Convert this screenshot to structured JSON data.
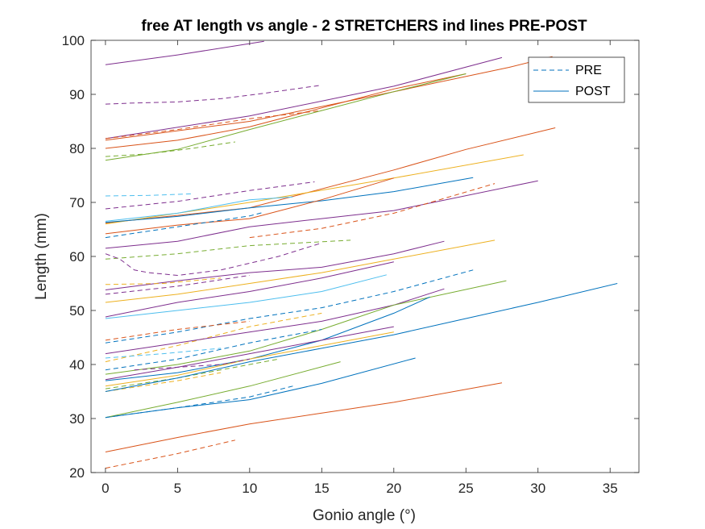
{
  "chart_data": {
    "type": "line",
    "title": "free AT length vs angle - 2 STRETCHERS ind lines PRE-POST",
    "xlabel": "Gonio angle (°)",
    "ylabel": "Length (mm)",
    "xlim": [
      -1,
      37
    ],
    "ylim": [
      20,
      100
    ],
    "xticks": [
      0,
      5,
      10,
      15,
      20,
      25,
      30,
      35
    ],
    "yticks": [
      20,
      30,
      40,
      50,
      60,
      70,
      80,
      90,
      100
    ],
    "grid": false,
    "legend": {
      "position": "top-right",
      "entries": [
        {
          "label": "PRE",
          "style": "dashed",
          "color": "#0072BD"
        },
        {
          "label": "POST",
          "style": "solid",
          "color": "#0072BD"
        }
      ]
    },
    "series": [
      {
        "style": "solid",
        "color": "#7E2F8E",
        "points": [
          [
            0,
            95.5
          ],
          [
            5,
            97.3
          ],
          [
            11,
            99.8
          ]
        ]
      },
      {
        "style": "dashed",
        "color": "#7E2F8E",
        "points": [
          [
            0,
            88.2
          ],
          [
            2,
            88.4
          ],
          [
            5,
            88.6
          ],
          [
            8,
            89.2
          ],
          [
            11,
            90.2
          ],
          [
            15,
            91.7
          ]
        ]
      },
      {
        "style": "solid",
        "color": "#7E2F8E",
        "points": [
          [
            0,
            81.8
          ],
          [
            10,
            86.0
          ],
          [
            20,
            91.5
          ],
          [
            27.5,
            96.8
          ]
        ]
      },
      {
        "style": "solid",
        "color": "#D95319",
        "points": [
          [
            0,
            81.5
          ],
          [
            10,
            85.0
          ],
          [
            20,
            90.5
          ],
          [
            28,
            95.0
          ],
          [
            31,
            97.0
          ]
        ]
      },
      {
        "style": "dashed",
        "color": "#D95319",
        "points": [
          [
            0,
            81.8
          ],
          [
            5,
            83.5
          ],
          [
            10,
            85.5
          ],
          [
            15,
            87.0
          ]
        ]
      },
      {
        "style": "solid",
        "color": "#D95319",
        "points": [
          [
            0,
            80.0
          ],
          [
            5,
            81.5
          ],
          [
            10,
            84.0
          ],
          [
            15,
            87.5
          ],
          [
            20,
            91.0
          ],
          [
            25,
            93.8
          ]
        ]
      },
      {
        "style": "dashed",
        "color": "#77AC30",
        "points": [
          [
            0,
            78.5
          ],
          [
            3,
            79.0
          ],
          [
            6,
            80.0
          ],
          [
            9,
            81.2
          ]
        ]
      },
      {
        "style": "solid",
        "color": "#77AC30",
        "points": [
          [
            0,
            77.8
          ],
          [
            5,
            79.8
          ],
          [
            10,
            83.5
          ],
          [
            15,
            87.0
          ],
          [
            20,
            90.5
          ],
          [
            25,
            93.8
          ]
        ]
      },
      {
        "style": "solid",
        "color": "#D95319",
        "points": [
          [
            0,
            66.2
          ],
          [
            10,
            69.0
          ],
          [
            20,
            76.0
          ],
          [
            25,
            79.8
          ],
          [
            31.2,
            83.8
          ]
        ]
      },
      {
        "style": "solid",
        "color": "#EDB120",
        "points": [
          [
            0,
            66.0
          ],
          [
            10,
            70.0
          ],
          [
            20,
            74.5
          ],
          [
            29,
            78.8
          ]
        ]
      },
      {
        "style": "dashed",
        "color": "#4DBEEE",
        "points": [
          [
            0,
            71.2
          ],
          [
            3,
            71.3
          ],
          [
            6,
            71.6
          ]
        ]
      },
      {
        "style": "solid",
        "color": "#4DBEEE",
        "points": [
          [
            0,
            66.5
          ],
          [
            5,
            68.0
          ],
          [
            10,
            70.5
          ],
          [
            13,
            71.0
          ]
        ]
      },
      {
        "style": "dashed",
        "color": "#7E2F8E",
        "points": [
          [
            0,
            68.8
          ],
          [
            5,
            70.2
          ],
          [
            10,
            72.2
          ],
          [
            14.5,
            73.8
          ]
        ]
      },
      {
        "style": "solid",
        "color": "#0072BD",
        "points": [
          [
            0,
            66.3
          ],
          [
            5,
            67.4
          ],
          [
            10,
            69.0
          ],
          [
            15,
            70.3
          ],
          [
            20,
            72.0
          ],
          [
            25.5,
            74.6
          ]
        ]
      },
      {
        "style": "solid",
        "color": "#7E2F8E",
        "points": [
          [
            0,
            61.5
          ],
          [
            5,
            62.8
          ],
          [
            10,
            65.5
          ],
          [
            15,
            67.0
          ],
          [
            20,
            68.5
          ],
          [
            30,
            74.0
          ]
        ]
      },
      {
        "style": "solid",
        "color": "#D95319",
        "points": [
          [
            0,
            64.2
          ],
          [
            5,
            65.8
          ],
          [
            10,
            67.0
          ],
          [
            15,
            70.5
          ],
          [
            20,
            74.5
          ]
        ]
      },
      {
        "style": "dashed",
        "color": "#D95319",
        "points": [
          [
            10,
            63.5
          ],
          [
            15,
            65.2
          ],
          [
            20,
            68.0
          ],
          [
            27,
            73.5
          ]
        ]
      },
      {
        "style": "dashed",
        "color": "#0072BD",
        "points": [
          [
            0,
            63.5
          ],
          [
            5,
            65.5
          ],
          [
            10,
            67.5
          ],
          [
            11,
            68.2
          ]
        ]
      },
      {
        "style": "dashed",
        "color": "#77AC30",
        "points": [
          [
            0,
            59.5
          ],
          [
            5,
            60.5
          ],
          [
            10,
            62.0
          ],
          [
            17,
            63.0
          ]
        ]
      },
      {
        "style": "dashed",
        "color": "#7E2F8E",
        "points": [
          [
            0,
            60.5
          ],
          [
            1,
            59.5
          ],
          [
            2,
            57.5
          ],
          [
            3,
            57.0
          ],
          [
            5,
            56.5
          ],
          [
            8,
            57.5
          ],
          [
            12,
            60.0
          ],
          [
            15,
            62.5
          ]
        ]
      },
      {
        "style": "solid",
        "color": "#7E2F8E",
        "points": [
          [
            0,
            53.8
          ],
          [
            5,
            55.5
          ],
          [
            10,
            57.0
          ],
          [
            15,
            58.0
          ],
          [
            20,
            60.5
          ],
          [
            23.5,
            62.8
          ]
        ]
      },
      {
        "style": "solid",
        "color": "#EDB120",
        "points": [
          [
            0,
            51.5
          ],
          [
            5,
            53.0
          ],
          [
            10,
            55.0
          ],
          [
            15,
            57.0
          ],
          [
            20,
            59.5
          ],
          [
            27,
            63.0
          ]
        ]
      },
      {
        "style": "dashed",
        "color": "#EDB120",
        "points": [
          [
            0,
            54.8
          ],
          [
            4,
            55.0
          ],
          [
            8,
            56.0
          ]
        ]
      },
      {
        "style": "dashed",
        "color": "#7E2F8E",
        "points": [
          [
            0,
            53.0
          ],
          [
            5,
            54.5
          ],
          [
            10,
            56.5
          ]
        ]
      },
      {
        "style": "solid",
        "color": "#4DBEEE",
        "points": [
          [
            0,
            48.5
          ],
          [
            5,
            50.0
          ],
          [
            10,
            51.5
          ],
          [
            15,
            53.5
          ],
          [
            19.5,
            56.6
          ]
        ]
      },
      {
        "style": "dashed",
        "color": "#0072BD",
        "points": [
          [
            0,
            44.0
          ],
          [
            5,
            46.0
          ],
          [
            10,
            48.5
          ],
          [
            15,
            50.5
          ],
          [
            20,
            53.5
          ],
          [
            25.5,
            57.5
          ]
        ]
      },
      {
        "style": "solid",
        "color": "#7E2F8E",
        "points": [
          [
            0,
            48.8
          ],
          [
            5,
            51.5
          ],
          [
            10,
            53.5
          ],
          [
            15,
            56.0
          ],
          [
            20,
            59.0
          ]
        ]
      },
      {
        "style": "dashed",
        "color": "#EDB120",
        "points": [
          [
            0,
            40.5
          ],
          [
            5,
            43.5
          ],
          [
            10,
            47.0
          ],
          [
            15,
            49.5
          ]
        ]
      },
      {
        "style": "solid",
        "color": "#7E2F8E",
        "points": [
          [
            0,
            42.0
          ],
          [
            5,
            44.0
          ],
          [
            10,
            46.0
          ],
          [
            15,
            48.0
          ],
          [
            20,
            51.0
          ],
          [
            23.5,
            54.0
          ]
        ]
      },
      {
        "style": "solid",
        "color": "#77AC30",
        "points": [
          [
            0,
            38.2
          ],
          [
            5,
            40.0
          ],
          [
            10,
            42.5
          ],
          [
            15,
            46.5
          ],
          [
            20,
            51.0
          ],
          [
            27.8,
            55.5
          ]
        ]
      },
      {
        "style": "solid",
        "color": "#0072BD",
        "points": [
          [
            0,
            37.0
          ],
          [
            5,
            38.5
          ],
          [
            10,
            41.0
          ],
          [
            15,
            44.5
          ],
          [
            20,
            49.5
          ],
          [
            22.5,
            52.5
          ]
        ]
      },
      {
        "style": "solid",
        "color": "#7E2F8E",
        "points": [
          [
            0,
            37.2
          ],
          [
            5,
            39.5
          ],
          [
            10,
            42.0
          ],
          [
            15,
            44.5
          ],
          [
            20,
            47.0
          ]
        ]
      },
      {
        "style": "solid",
        "color": "#EDB120",
        "points": [
          [
            0,
            36.0
          ],
          [
            5,
            38.0
          ],
          [
            10,
            41.0
          ],
          [
            15,
            43.5
          ],
          [
            20,
            46.0
          ]
        ]
      },
      {
        "style": "dashed",
        "color": "#4DBEEE",
        "points": [
          [
            0,
            41.2
          ],
          [
            4,
            42.0
          ],
          [
            8,
            43.0
          ]
        ]
      },
      {
        "style": "dashed",
        "color": "#D95319",
        "points": [
          [
            0,
            44.5
          ],
          [
            5,
            46.5
          ],
          [
            10,
            48.0
          ]
        ]
      },
      {
        "style": "dashed",
        "color": "#0072BD",
        "points": [
          [
            0,
            39.0
          ],
          [
            5,
            41.0
          ],
          [
            10,
            44.0
          ],
          [
            15,
            46.5
          ]
        ]
      },
      {
        "style": "dashed",
        "color": "#77AC30",
        "points": [
          [
            0,
            35.5
          ],
          [
            5,
            37.5
          ],
          [
            10,
            40.0
          ],
          [
            12,
            41.0
          ]
        ]
      },
      {
        "style": "dashed",
        "color": "#EDB120",
        "points": [
          [
            0,
            35.0
          ],
          [
            5,
            37.0
          ],
          [
            8,
            38.5
          ]
        ]
      },
      {
        "style": "dashed",
        "color": "#7E2F8E",
        "points": [
          [
            2,
            39.0
          ],
          [
            5,
            39.5
          ],
          [
            8,
            40.0
          ],
          [
            10,
            41.0
          ]
        ]
      },
      {
        "style": "solid",
        "color": "#0072BD",
        "points": [
          [
            0,
            35.0
          ],
          [
            5,
            37.5
          ],
          [
            10,
            40.5
          ],
          [
            15,
            43.0
          ],
          [
            20,
            45.5
          ],
          [
            25,
            48.5
          ],
          [
            30,
            51.5
          ],
          [
            35.5,
            55.0
          ]
        ]
      },
      {
        "style": "solid",
        "color": "#0072BD",
        "points": [
          [
            0,
            30.2
          ],
          [
            5,
            32.0
          ],
          [
            10,
            33.5
          ],
          [
            15,
            36.5
          ],
          [
            21.5,
            41.2
          ]
        ]
      },
      {
        "style": "solid",
        "color": "#77AC30",
        "points": [
          [
            0,
            30.2
          ],
          [
            5,
            33.0
          ],
          [
            10,
            36.0
          ],
          [
            16.3,
            40.5
          ]
        ]
      },
      {
        "style": "dashed",
        "color": "#0072BD",
        "points": [
          [
            0,
            30.2
          ],
          [
            5,
            32.0
          ],
          [
            10,
            34.0
          ],
          [
            13,
            36.0
          ]
        ]
      },
      {
        "style": "solid",
        "color": "#D95319",
        "points": [
          [
            0,
            23.8
          ],
          [
            5,
            26.5
          ],
          [
            10,
            29.0
          ],
          [
            15,
            31.0
          ],
          [
            20,
            33.0
          ],
          [
            27.5,
            36.6
          ]
        ]
      },
      {
        "style": "dashed",
        "color": "#D95319",
        "points": [
          [
            0,
            20.8
          ],
          [
            5,
            23.5
          ],
          [
            9,
            26.0
          ]
        ]
      }
    ]
  }
}
